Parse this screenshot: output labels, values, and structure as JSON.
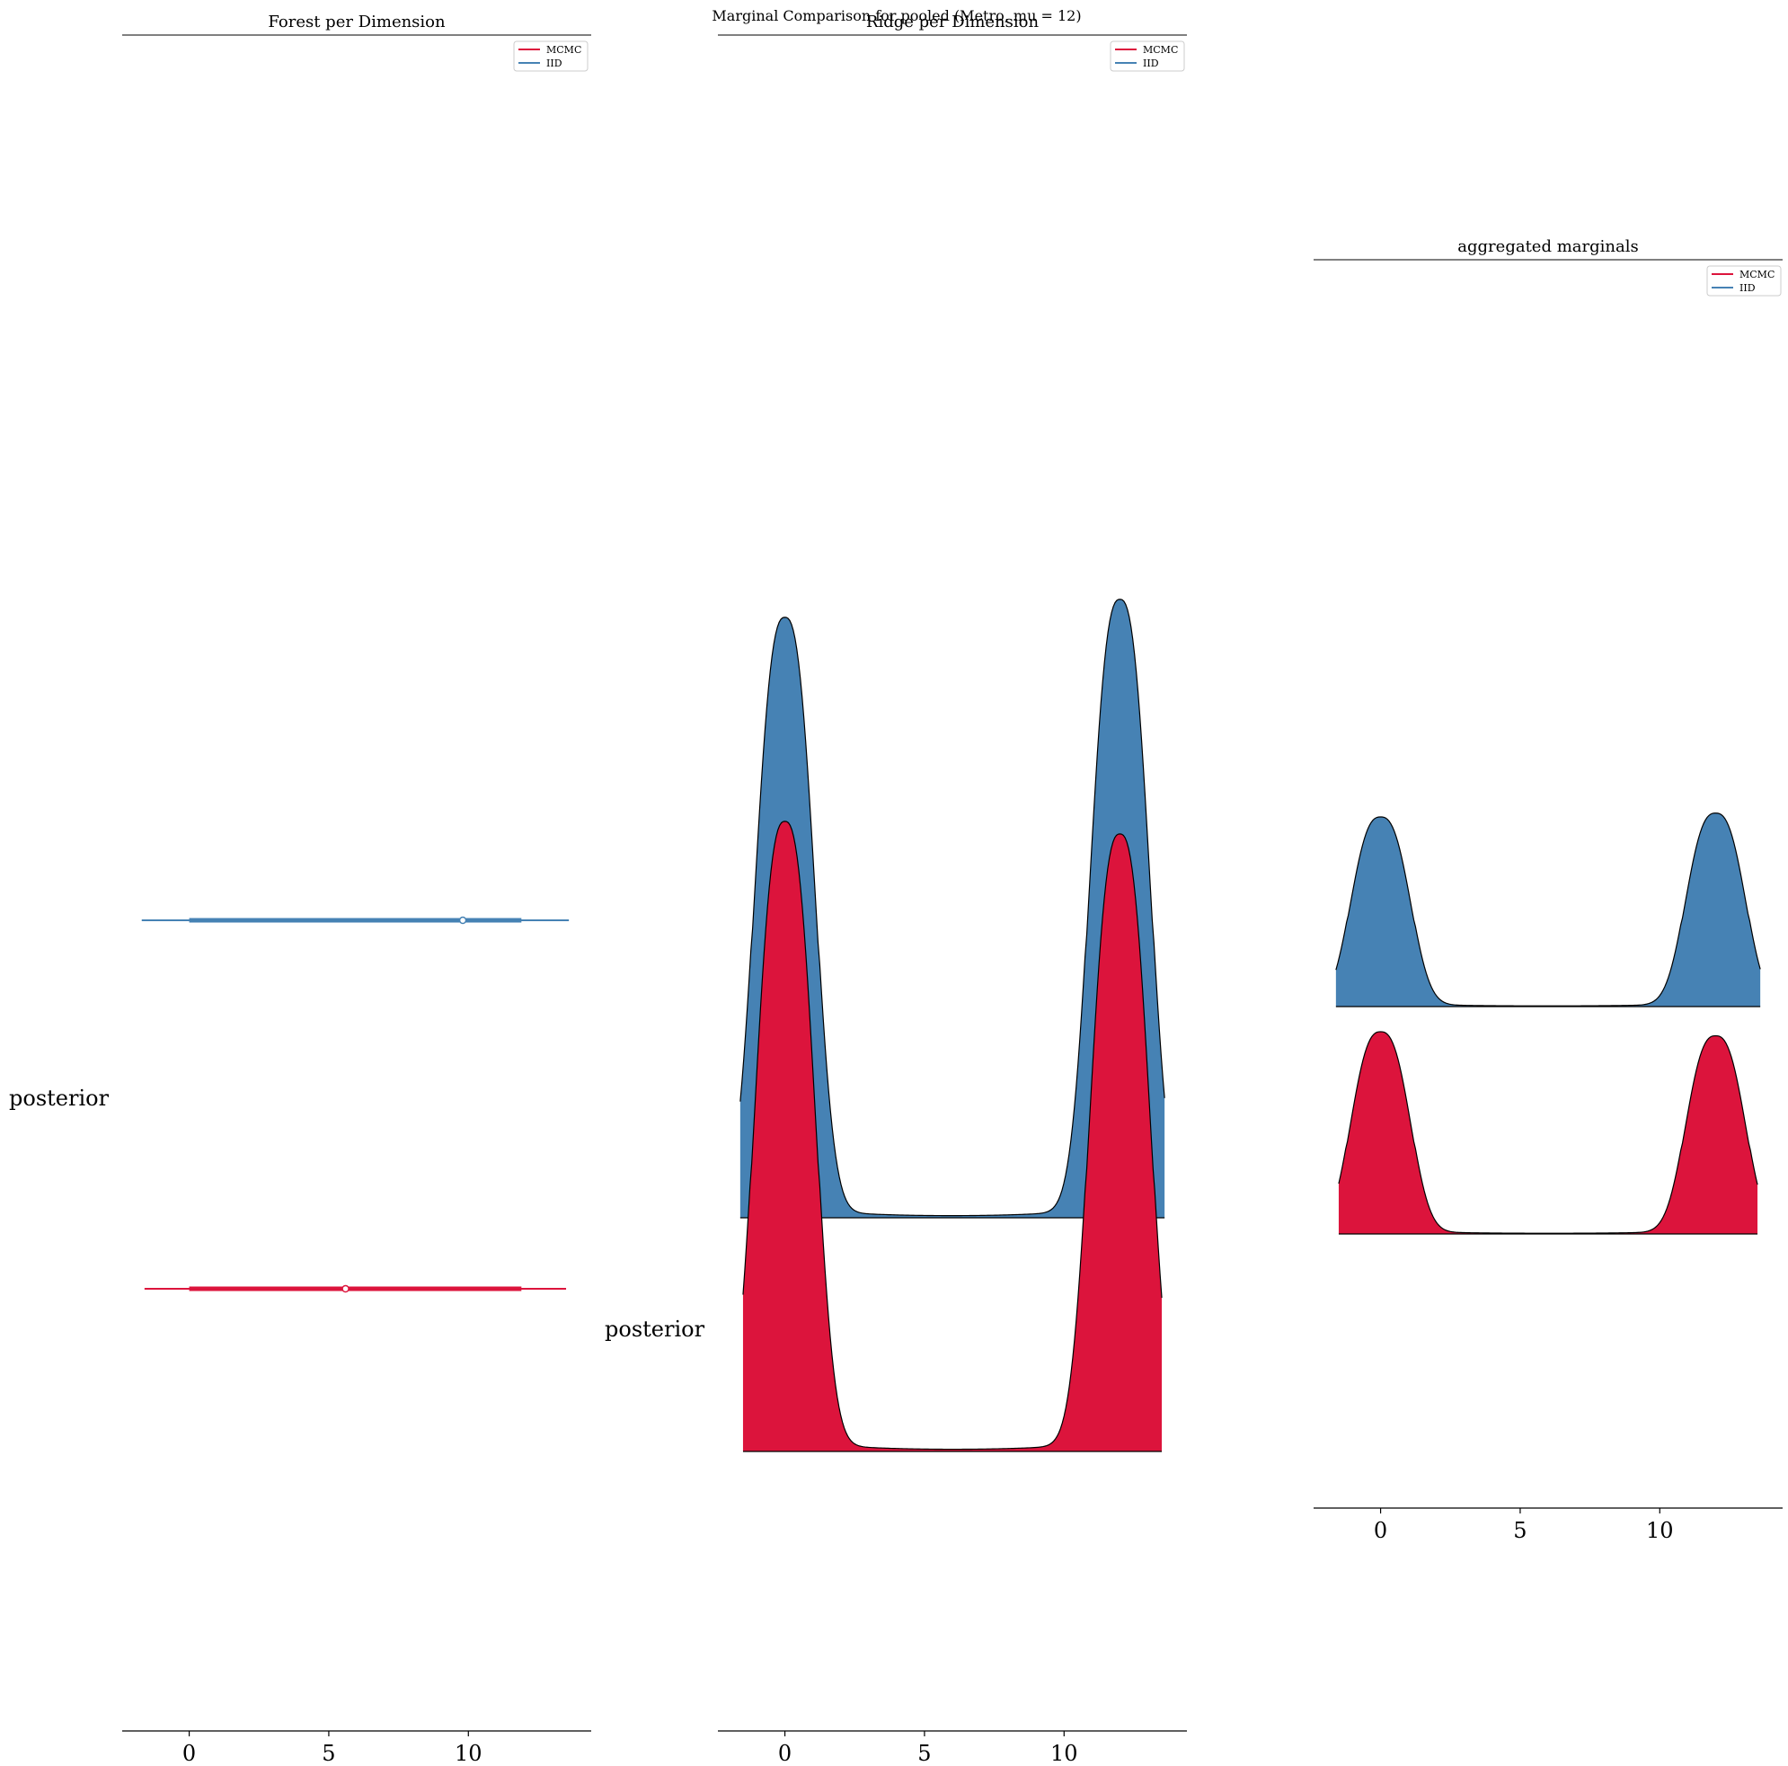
{
  "figure": {
    "suptitle": "Marginal Comparison for pooled (Metro, mu = 12)",
    "colors": {
      "mcmc": "#dc143c",
      "iid": "#4682b4",
      "axis": "#000000"
    }
  },
  "chart_data": [
    {
      "type": "forest",
      "title": "Forest per Dimension",
      "xlabel": "",
      "ylabel": "",
      "category_label": "posterior",
      "xlim": [
        -2.4,
        14.4
      ],
      "xticks": [
        0,
        5,
        10
      ],
      "grid": false,
      "legend": {
        "placement": "top-right",
        "entries": [
          "MCMC",
          "IID"
        ]
      },
      "series": [
        {
          "name": "IID",
          "color": "#4682b4",
          "point": 9.8,
          "hdi_inner": [
            0.0,
            11.9
          ],
          "hdi_outer": [
            -1.7,
            13.6
          ]
        },
        {
          "name": "MCMC",
          "color": "#dc143c",
          "point": 5.6,
          "hdi_inner": [
            0.0,
            11.9
          ],
          "hdi_outer": [
            -1.6,
            13.5
          ]
        }
      ]
    },
    {
      "type": "ridge",
      "title": "Ridge per Dimension",
      "xlabel": "",
      "ylabel": "",
      "category_label": "posterior",
      "xlim": [
        -2.4,
        14.4
      ],
      "xticks": [
        0,
        5,
        10
      ],
      "grid": false,
      "legend": {
        "placement": "top-right",
        "entries": [
          "MCMC",
          "IID"
        ]
      },
      "series": [
        {
          "name": "IID",
          "color": "#4682b4",
          "range": [
            -1.6,
            13.6
          ],
          "modes": [
            0.0,
            12.0
          ],
          "peak_heights": [
            1.0,
            1.03
          ]
        },
        {
          "name": "MCMC",
          "color": "#dc143c",
          "range": [
            -1.5,
            13.5
          ],
          "modes": [
            0.0,
            12.0
          ],
          "peak_heights": [
            1.0,
            0.98
          ]
        }
      ]
    },
    {
      "type": "ridge",
      "title": "aggregated marginals",
      "xlabel": "",
      "ylabel": "",
      "xlim": [
        -2.4,
        14.4
      ],
      "xticks": [
        0,
        5,
        10
      ],
      "grid": false,
      "legend": {
        "placement": "top-right",
        "entries": [
          "MCMC",
          "IID"
        ]
      },
      "series": [
        {
          "name": "IID",
          "color": "#4682b4",
          "range": [
            -1.6,
            13.6
          ],
          "modes": [
            0.0,
            12.0
          ],
          "peak_heights": [
            1.0,
            1.02
          ]
        },
        {
          "name": "MCMC",
          "color": "#dc143c",
          "range": [
            -1.5,
            13.5
          ],
          "modes": [
            0.0,
            12.0
          ],
          "peak_heights": [
            1.0,
            0.98
          ]
        }
      ]
    }
  ]
}
